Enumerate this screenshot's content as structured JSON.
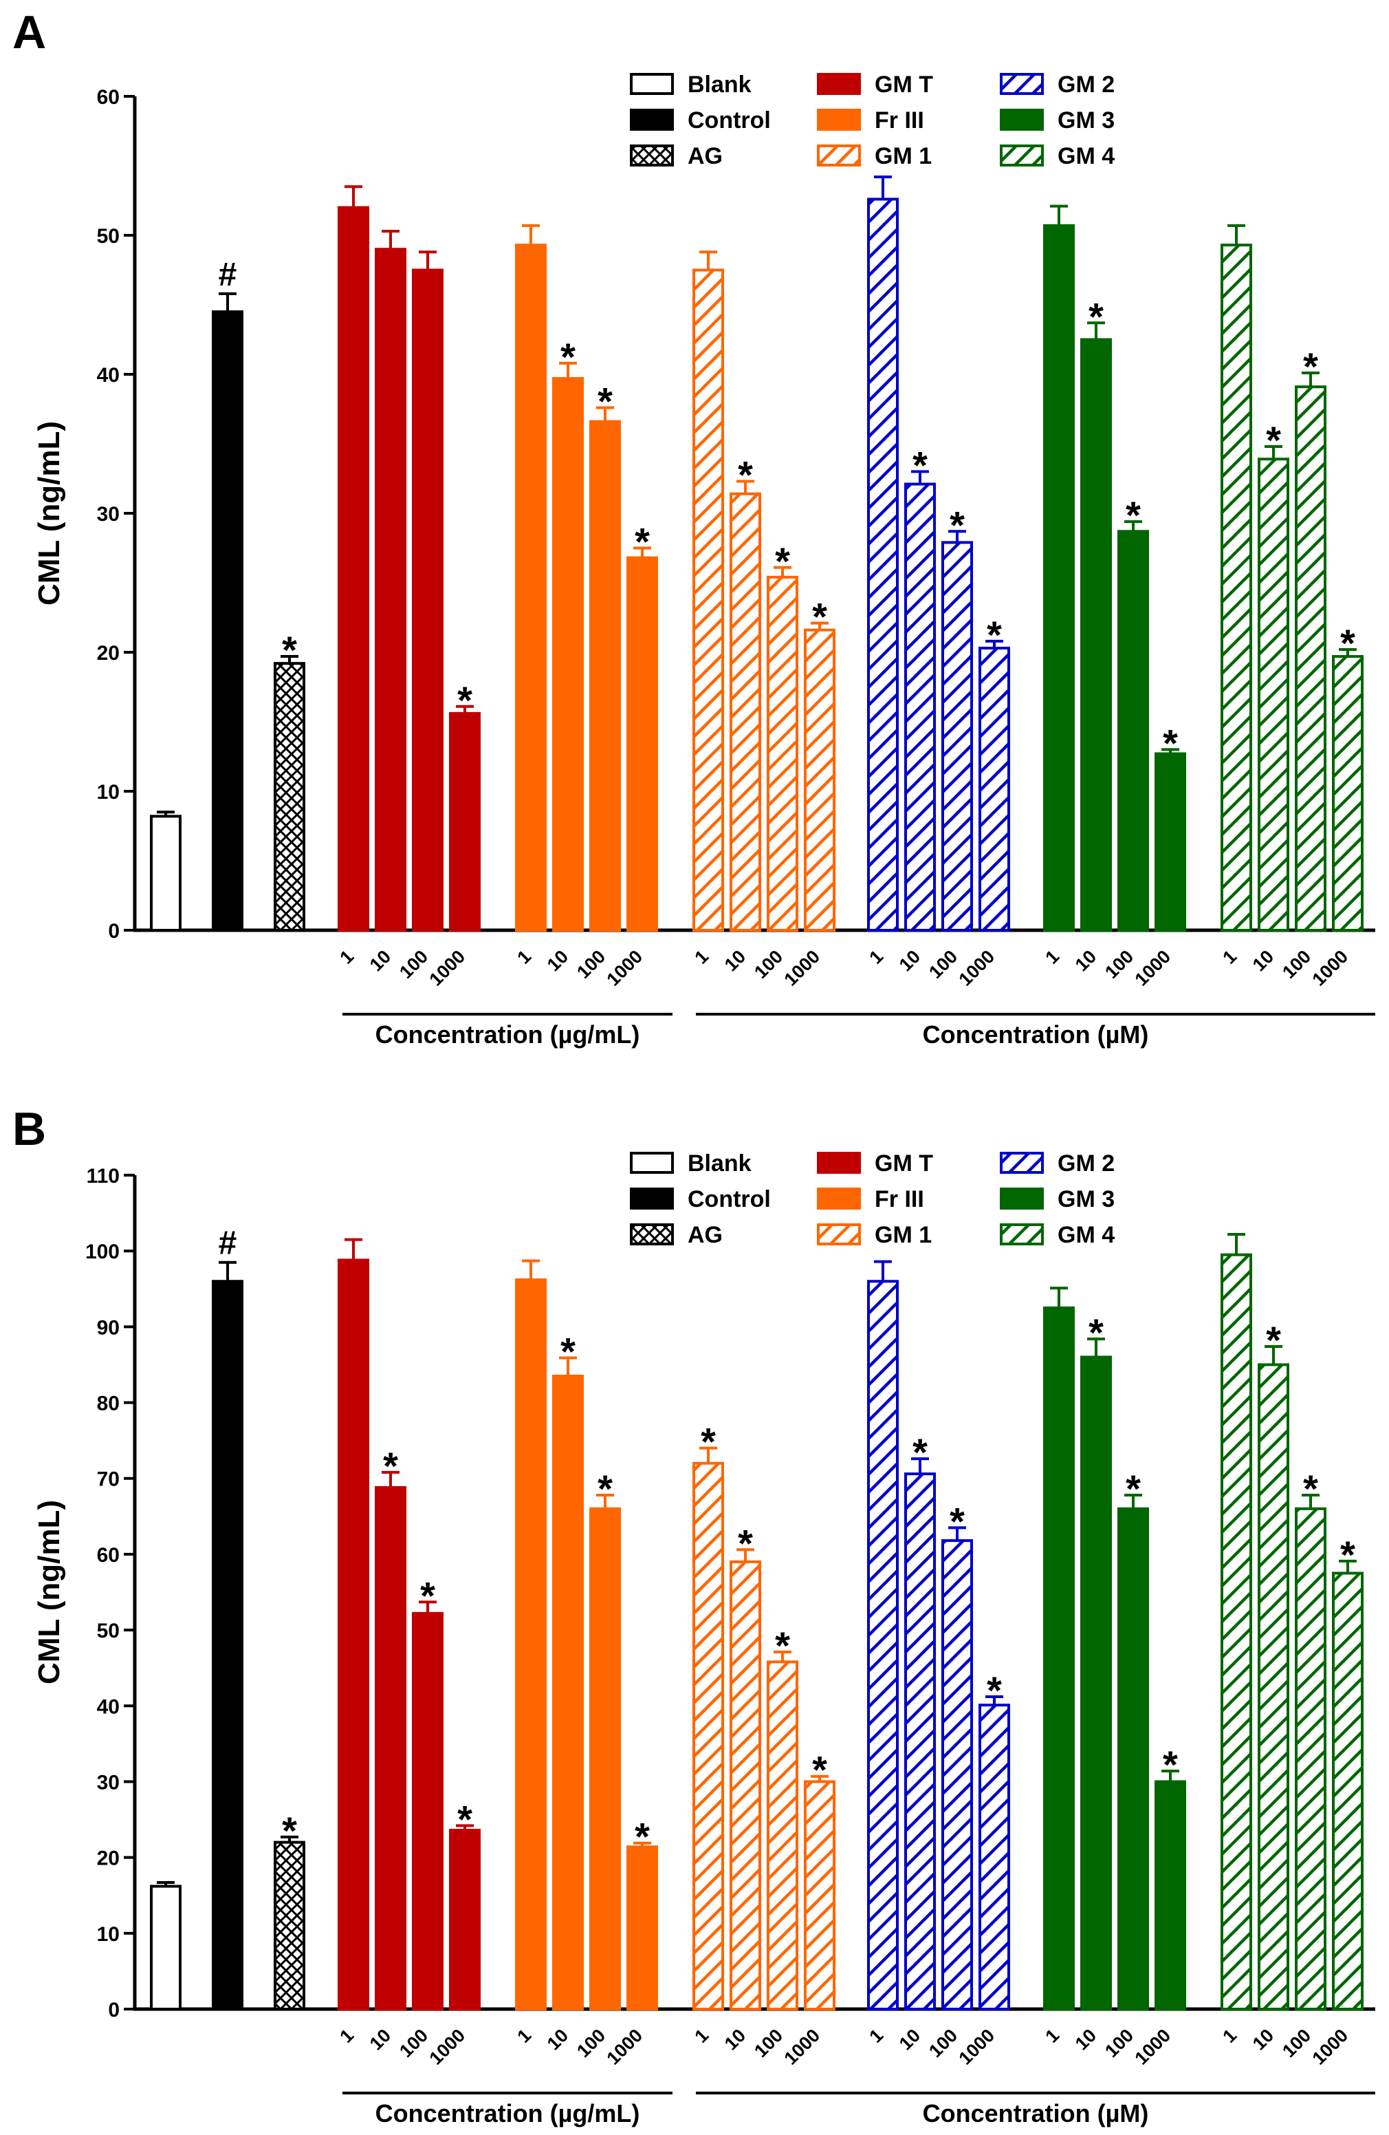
{
  "figure": {
    "panels": [
      "A",
      "B"
    ],
    "legend": {
      "blank": "Blank",
      "control": "Control",
      "ag": "AG",
      "gmt": "GM T",
      "fr3": "Fr III",
      "gm1": "GM 1",
      "gm2": "GM 2",
      "gm3": "GM 3",
      "gm4": "GM 4"
    },
    "colors": {
      "black": "#000000",
      "red": "#c00000",
      "orange": "#ff6600",
      "blue": "#0000cc",
      "green": "#006600"
    },
    "concentration_ticks": [
      "1",
      "10",
      "100",
      "1000"
    ],
    "bracket_labels": [
      "Concentration (µg/mL)",
      "Concentration (µM)"
    ],
    "significance": {
      "star": "*",
      "hash": "#"
    }
  },
  "chart_data": [
    {
      "type": "bar",
      "panel": "A",
      "ylabel": "CML (ng/mL)",
      "ylim": [
        0,
        60
      ],
      "yticks": [
        0,
        10,
        20,
        30,
        40,
        50,
        60
      ],
      "single_groups": [
        {
          "name": "Blank",
          "value": 8.2,
          "err": 0.3,
          "sig": ""
        },
        {
          "name": "Control",
          "value": 44.5,
          "err": 1.3,
          "sig": "#"
        },
        {
          "name": "AG",
          "value": 19.2,
          "err": 0.5,
          "sig": "*"
        }
      ],
      "series": [
        {
          "name": "GM T",
          "values": [
            52.0,
            49.0,
            47.5,
            15.6
          ],
          "err": [
            1.5,
            1.3,
            1.3,
            0.5
          ],
          "sig": [
            "",
            "",
            "",
            "*"
          ]
        },
        {
          "name": "Fr III",
          "values": [
            49.3,
            39.7,
            36.6,
            26.8
          ],
          "err": [
            1.4,
            1.1,
            1.0,
            0.7
          ],
          "sig": [
            "",
            "*",
            "*",
            "*"
          ]
        },
        {
          "name": "GM 1",
          "values": [
            47.5,
            31.4,
            25.4,
            21.6
          ],
          "err": [
            1.3,
            0.9,
            0.7,
            0.5
          ],
          "sig": [
            "",
            "*",
            "*",
            "*"
          ]
        },
        {
          "name": "GM 2",
          "values": [
            52.6,
            32.1,
            27.9,
            20.3
          ],
          "err": [
            1.6,
            0.9,
            0.8,
            0.5
          ],
          "sig": [
            "",
            "*",
            "*",
            "*"
          ]
        },
        {
          "name": "GM 3",
          "values": [
            50.7,
            42.5,
            28.7,
            12.7
          ],
          "err": [
            1.4,
            1.2,
            0.7,
            0.3
          ],
          "sig": [
            "",
            "*",
            "*",
            "*"
          ]
        },
        {
          "name": "GM 4",
          "values": [
            49.3,
            33.9,
            39.1,
            19.7
          ],
          "err": [
            1.4,
            0.9,
            1.0,
            0.5
          ],
          "sig": [
            "",
            "*",
            "*",
            "*"
          ]
        }
      ]
    },
    {
      "type": "bar",
      "panel": "B",
      "ylabel": "CML (ng/mL)",
      "ylim": [
        0,
        110
      ],
      "yticks": [
        0,
        10,
        20,
        30,
        40,
        50,
        60,
        70,
        80,
        90,
        100,
        110
      ],
      "single_groups": [
        {
          "name": "Blank",
          "value": 16.2,
          "err": 0.5,
          "sig": ""
        },
        {
          "name": "Control",
          "value": 96.0,
          "err": 2.5,
          "sig": "#"
        },
        {
          "name": "AG",
          "value": 22.0,
          "err": 0.7,
          "sig": "*"
        }
      ],
      "series": [
        {
          "name": "GM T",
          "values": [
            98.8,
            68.8,
            52.2,
            23.6
          ],
          "err": [
            2.7,
            2.0,
            1.5,
            0.6
          ],
          "sig": [
            "",
            "*",
            "*",
            "*"
          ]
        },
        {
          "name": "Fr III",
          "values": [
            96.2,
            83.5,
            66.0,
            21.4
          ],
          "err": [
            2.5,
            2.4,
            1.8,
            0.5
          ],
          "sig": [
            "",
            "*",
            "*",
            "*"
          ]
        },
        {
          "name": "GM 1",
          "values": [
            72.0,
            59.0,
            45.8,
            30.0
          ],
          "err": [
            2.0,
            1.6,
            1.3,
            0.7
          ],
          "sig": [
            "*",
            "*",
            "*",
            "*"
          ]
        },
        {
          "name": "GM 2",
          "values": [
            96.0,
            70.6,
            61.8,
            40.1
          ],
          "err": [
            2.6,
            2.0,
            1.7,
            1.1
          ],
          "sig": [
            "",
            "*",
            "*",
            "*"
          ]
        },
        {
          "name": "GM 3",
          "values": [
            92.5,
            86.0,
            66.0,
            30.0
          ],
          "err": [
            2.6,
            2.4,
            1.8,
            1.4
          ],
          "sig": [
            "",
            "*",
            "*",
            "*"
          ]
        },
        {
          "name": "GM 4",
          "values": [
            99.5,
            85.0,
            66.0,
            57.5
          ],
          "err": [
            2.7,
            2.4,
            1.8,
            1.6
          ],
          "sig": [
            "",
            "*",
            "*",
            "*"
          ]
        }
      ]
    }
  ]
}
